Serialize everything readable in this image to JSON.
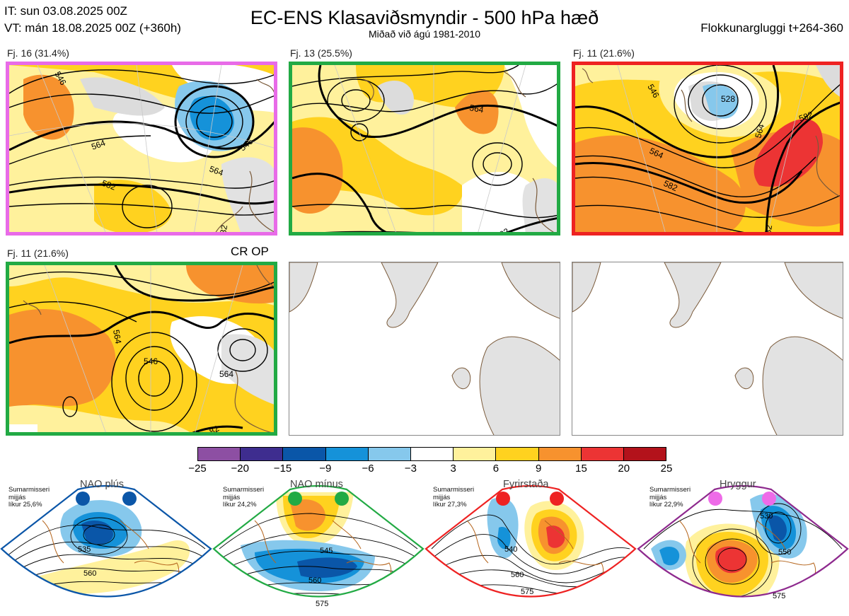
{
  "header": {
    "it_line": "IT: sun 03.08.2025 00Z",
    "vt_line": "VT: mán 18.08.2025 00Z  (+360h)",
    "title": "EC-ENS Klasaviðsmyndir - 500 hPa hæð",
    "subtitle": "Miðað við ágú 1981-2010",
    "window": "Flokkunargluggi t+264-360"
  },
  "panels": [
    {
      "label": "Fj. 16 (31.4%)",
      "border": "#e86be8",
      "contours": [
        "546",
        "564",
        "546",
        "564",
        "582",
        "82"
      ]
    },
    {
      "label": "Fj. 13 (25.5%)",
      "border": "#22aa44",
      "contours": [
        "564",
        "82"
      ]
    },
    {
      "label": "Fj. 11 (21.6%)",
      "border": "#ee2222",
      "contours": [
        "528",
        "546",
        "564",
        "564",
        "582",
        "582",
        "82"
      ]
    },
    {
      "label": "Fj. 11 (21.6%)",
      "border": "#22aa44",
      "note": "CR OP",
      "contours": [
        "546",
        "564",
        "564",
        "82"
      ]
    }
  ],
  "colorbar": {
    "ticks": [
      "−25",
      "−20",
      "−15",
      "−9",
      "−6",
      "−3",
      "3",
      "6",
      "9",
      "15",
      "20",
      "25"
    ],
    "colors": [
      "#8d4fa3",
      "#3e2d8f",
      "#0a56a8",
      "#1592d9",
      "#86c8ec",
      "#ffffff",
      "#fff19c",
      "#ffd21f",
      "#f7922e",
      "#ec3434",
      "#b3121b"
    ]
  },
  "regimes": [
    {
      "name": "NAO plús",
      "line1": "Sumarmisseri",
      "line2": "mijjás",
      "line3": "líkur 25,6%",
      "color": "#0b56a8",
      "contours": [
        "535",
        "560"
      ]
    },
    {
      "name": "NAO mínus",
      "line1": "Sumarmisseri",
      "line2": "mijjás",
      "line3": "líkur 24,2%",
      "color": "#22aa44",
      "contours": [
        "545",
        "560",
        "575"
      ]
    },
    {
      "name": "Fyrirstaða",
      "line1": "Sumarmisseri",
      "line2": "mijjás",
      "line3": "líkur 27,3%",
      "color": "#ee2222",
      "contours": [
        "540",
        "560",
        "575"
      ]
    },
    {
      "name": "Hryggur",
      "line1": "Sumarmisseri",
      "line2": "mijjás",
      "line3": "líkur 22,9%",
      "color": "#8e2a8e",
      "contours": [
        "530",
        "550",
        "575"
      ]
    }
  ]
}
